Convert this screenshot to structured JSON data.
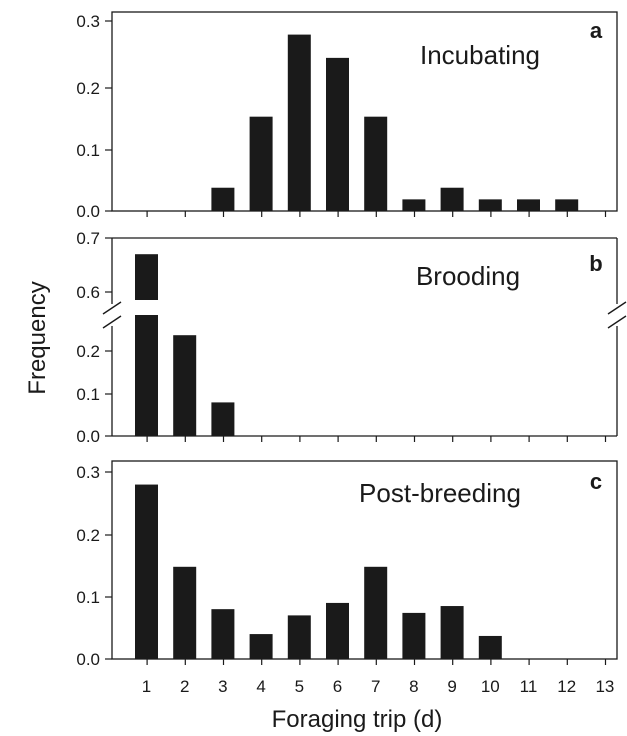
{
  "figure": {
    "ylabel": "Frequency",
    "xlabel": "Foraging trip (d)"
  },
  "chart_data": [
    {
      "type": "bar",
      "panel_letter": "a",
      "title": "Incubating",
      "categories": [
        "1",
        "2",
        "3",
        "4",
        "5",
        "6",
        "7",
        "8",
        "9",
        "10",
        "11",
        "12",
        "13"
      ],
      "values": [
        0,
        0,
        0.038,
        0.154,
        0.288,
        0.25,
        0.154,
        0.019,
        0.038,
        0.019,
        0.019,
        0.019,
        0
      ],
      "ylim": [
        0,
        0.32
      ],
      "yticks": [
        "0.0",
        "0.1",
        "0.2",
        "0.3"
      ],
      "xlabel": "",
      "ylabel": "Frequency",
      "color": "#1a1a1a",
      "grid": false
    },
    {
      "type": "bar",
      "panel_letter": "b",
      "title": "Brooding",
      "categories": [
        "1",
        "2",
        "3",
        "4",
        "5",
        "6",
        "7",
        "8",
        "9",
        "10",
        "11",
        "12",
        "13"
      ],
      "values": [
        0.67,
        0.24,
        0.08,
        0,
        0,
        0,
        0,
        0,
        0,
        0,
        0,
        0,
        0
      ],
      "y_axis_break": {
        "lower_range": [
          0,
          0.3
        ],
        "upper_range": [
          0.58,
          0.7
        ]
      },
      "yticks": [
        "0.0",
        "0.1",
        "0.2",
        "0.6",
        "0.7"
      ],
      "xlabel": "",
      "ylabel": "Frequency",
      "color": "#1a1a1a",
      "grid": false
    },
    {
      "type": "bar",
      "panel_letter": "c",
      "title": "Post-breeding",
      "categories": [
        "1",
        "2",
        "3",
        "4",
        "5",
        "6",
        "7",
        "8",
        "9",
        "10",
        "11",
        "12",
        "13"
      ],
      "values": [
        0.28,
        0.148,
        0.08,
        0.04,
        0.07,
        0.09,
        0.148,
        0.074,
        0.085,
        0.037,
        0,
        0,
        0
      ],
      "ylim": [
        0,
        0.32
      ],
      "yticks": [
        "0.0",
        "0.1",
        "0.2",
        "0.3"
      ],
      "xlabel": "Foraging trip (d)",
      "ylabel": "Frequency",
      "color": "#1a1a1a",
      "grid": false
    }
  ]
}
